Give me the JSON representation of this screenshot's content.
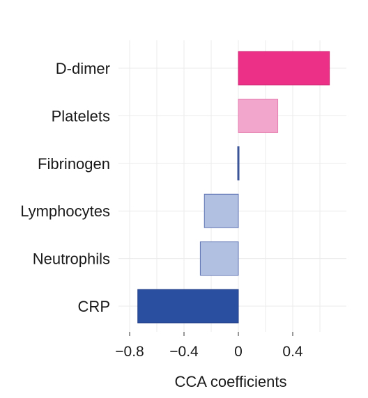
{
  "chart_data": {
    "type": "bar",
    "orientation": "horizontal",
    "categories": [
      "D-dimer",
      "Platelets",
      "Fibrinogen",
      "Lymphocytes",
      "Neutrophils",
      "CRP"
    ],
    "values": [
      0.67,
      0.29,
      -0.005,
      -0.25,
      -0.28,
      -0.74
    ],
    "bar_colors": [
      "#ec2f87",
      "#f3a6cb",
      "#3b5497",
      "#b1bfe1",
      "#b1bfe1",
      "#2a4fa1"
    ],
    "bar_edge_colors": [
      "#d02b77",
      "#e57fb1",
      "#3b5497",
      "#5e73b3",
      "#5e73b3",
      "#243f88"
    ],
    "xlabel": "CCA coefficients",
    "x_ticks": [
      -0.8,
      -0.4,
      0,
      0.4
    ],
    "x_tick_labels": [
      "−0.8",
      "−0.4",
      "0",
      "0.4"
    ],
    "xlim": [
      -0.88,
      0.73
    ],
    "grid": true,
    "grid_color": "#ebebeb"
  }
}
